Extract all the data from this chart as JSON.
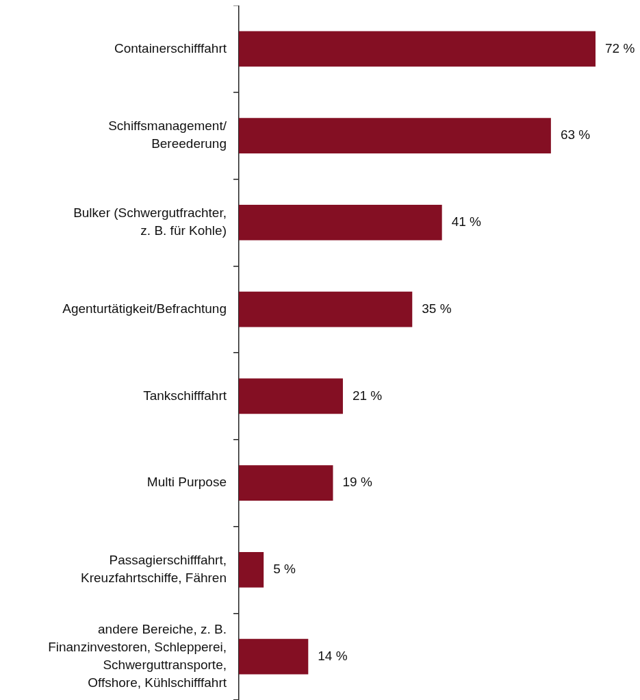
{
  "chart_data": {
    "type": "bar",
    "orientation": "horizontal",
    "categories": [
      "Containerschifffahrt",
      "Schiffsmanagement/\nBereederung",
      "Bulker (Schwergutfrachter,\nz. B. für Kohle)",
      "Agenturtätigkeit/Befrachtung",
      "Tankschifffahrt",
      "Multi Purpose",
      "Passagierschifffahrt,\nKreuzfahrtschiffe, Fähren",
      "andere Bereiche, z. B.\nFinanzinvestoren, Schlepperei,\nSchwerguttransporte,\nOffshore, Kühlschifffahrt"
    ],
    "values": [
      72,
      63,
      41,
      35,
      21,
      19,
      5,
      14
    ],
    "value_labels": [
      "72 %",
      "63 %",
      "41 %",
      "35 %",
      "21 %",
      "19 %",
      "5 %",
      "14 %"
    ],
    "color": "#840f23",
    "legend": false
  }
}
